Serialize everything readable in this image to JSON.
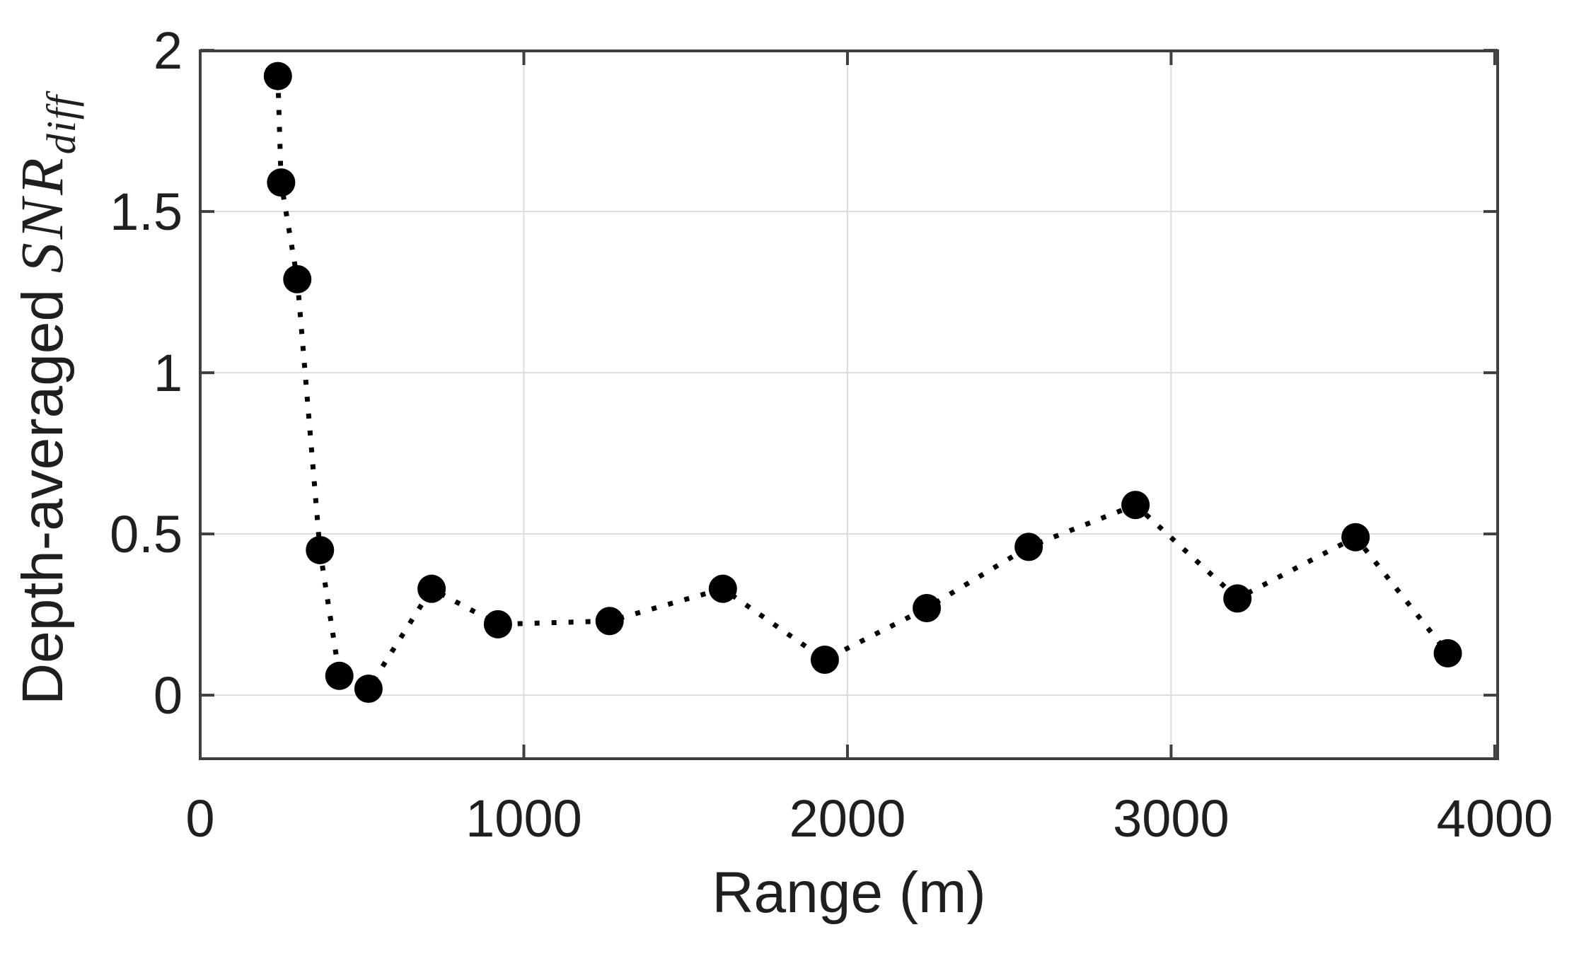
{
  "figure": {
    "background": "#ffffff",
    "text_color": "#1f1f1f"
  },
  "chart_data": {
    "type": "scatter",
    "title": "",
    "xlabel": "Range (m)",
    "ylabel": {
      "prefix": "Depth-averaged ",
      "math": "SNR",
      "subscript": "diff"
    },
    "x": [
      240,
      250,
      300,
      370,
      430,
      520,
      715,
      920,
      1265,
      1615,
      1930,
      2245,
      2560,
      2890,
      3205,
      3570,
      3855
    ],
    "y": [
      1.92,
      1.59,
      1.29,
      0.45,
      0.06,
      0.02,
      0.33,
      0.22,
      0.23,
      0.33,
      0.11,
      0.27,
      0.46,
      0.59,
      0.3,
      0.49,
      0.13
    ],
    "xlim": [
      0,
      4009
    ],
    "ylim": [
      -0.197,
      1.998
    ],
    "xticks": [
      0,
      1000,
      2000,
      3000,
      4000
    ],
    "yticks": [
      0,
      0.5,
      1,
      1.5,
      2
    ],
    "grid": true,
    "box": true,
    "tick_dir": "in",
    "legend": null,
    "line": {
      "style": "dotted",
      "color": "#000000",
      "width": 7,
      "dash": [
        7,
        17
      ]
    },
    "marker": {
      "shape": "filled-circle",
      "color": "#000000",
      "radius": 20
    },
    "colors": {
      "axis": "#3f3f3f",
      "grid": "#dcdcdc",
      "background": "#ffffff"
    }
  }
}
